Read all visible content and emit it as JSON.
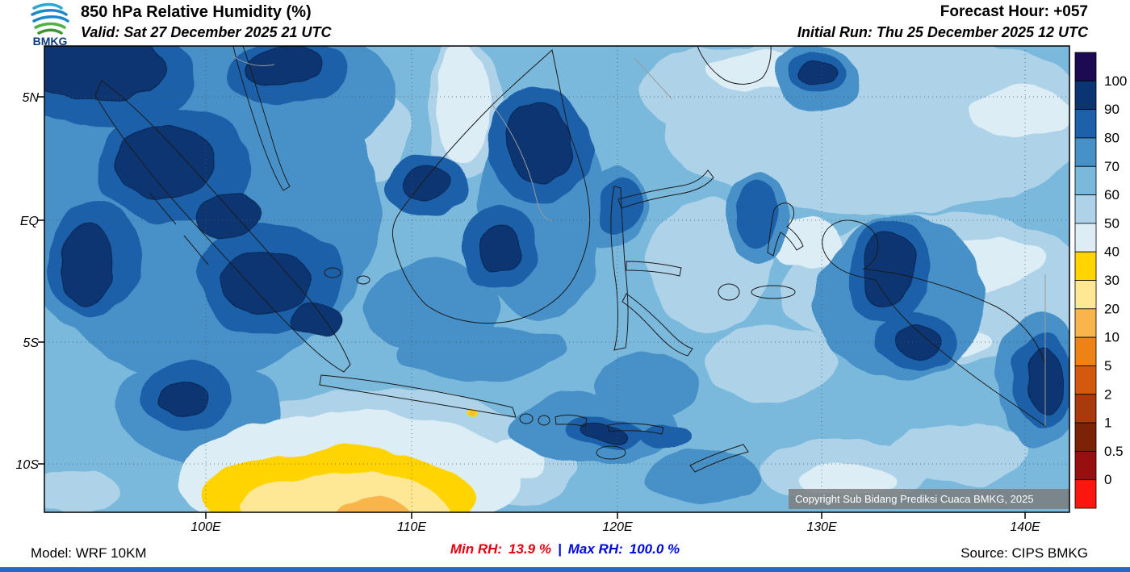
{
  "header": {
    "logo_text": "BMKG",
    "title": "850 hPa Relative Humidity (%)",
    "valid_line": "Valid: Sat 27 December 2025 21 UTC",
    "forecast_hour": "Forecast Hour: +057",
    "initial_run": "Initial Run: Thu 25 December 2025 12 UTC"
  },
  "map": {
    "lat_labels": [
      "5N",
      "EQ",
      "5S",
      "10S"
    ],
    "lon_labels": [
      "100E",
      "110E",
      "120E",
      "130E",
      "140E"
    ],
    "copyright": "Copyright Sub Bidang Prediksi Cuaca BMKG, 2025"
  },
  "colorbar": {
    "labels": [
      "100",
      "90",
      "80",
      "70",
      "60",
      "50",
      "40",
      "30",
      "20",
      "10",
      "5",
      "2",
      "1",
      "0.5",
      "0"
    ],
    "colors": [
      "#1c0a52",
      "#0a3572",
      "#1c61a9",
      "#4691c8",
      "#7ab9dc",
      "#aed3e9",
      "#dcedf6",
      "#ffd400",
      "#fee896",
      "#f9b44c",
      "#ef8214",
      "#d4590f",
      "#a83a0b",
      "#7c2206",
      "#97100f",
      "#fb1710"
    ]
  },
  "footer": {
    "model": "Model: WRF 10KM",
    "min_rh_label": "Min RH:",
    "min_rh_value": "13.9 %",
    "separator": "|",
    "max_rh_label": "Max RH:",
    "max_rh_value": "100.0 %",
    "source": "Source: CIPS BMKG",
    "min_color": "#e50012",
    "max_color": "#0008d8",
    "accent_bar_color": "#2468c8"
  },
  "chart_data": {
    "type": "heatmap",
    "title": "850 hPa Relative Humidity (%)",
    "variable": "Relative Humidity",
    "level_hpa": 850,
    "units": "%",
    "colorbar_levels": [
      100,
      90,
      80,
      70,
      60,
      50,
      40,
      30,
      20,
      10,
      5,
      2,
      1,
      0.5,
      0
    ],
    "x_ticks": [
      "100E",
      "110E",
      "120E",
      "130E",
      "140E"
    ],
    "y_ticks": [
      "5N",
      "EQ",
      "5S",
      "10S"
    ],
    "min_rh": 13.9,
    "max_rh": 100.0,
    "forecast_hour": 57,
    "model": "WRF 10KM",
    "source": "CIPS BMKG",
    "legend_position": "right"
  }
}
